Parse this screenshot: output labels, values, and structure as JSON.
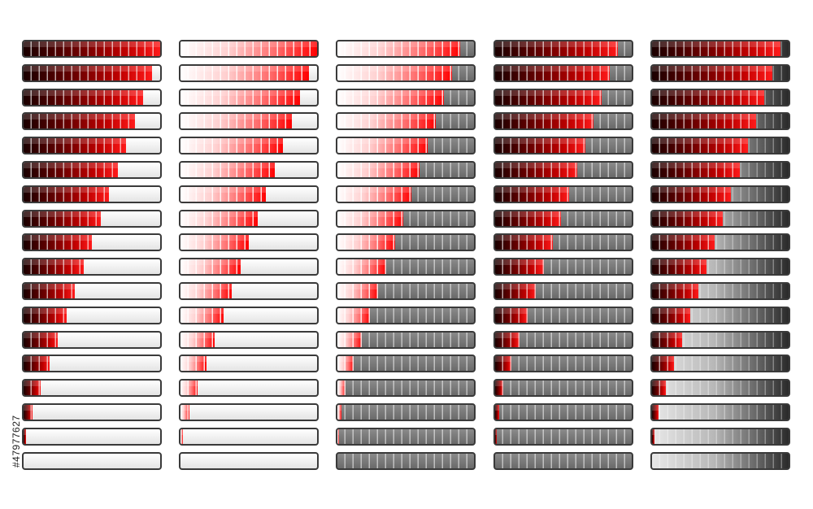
{
  "stock_id": "#47977627",
  "colors": {
    "accent_dark": "#8b0000",
    "accent_red": "#ff0000",
    "track_gray": "#7a7a7a",
    "border": "#3a3a3a"
  },
  "progress_sets": [
    {
      "name": "set-dark-red-on-white",
      "track": "white",
      "fill": "dark",
      "levels": [
        1.0,
        0.9375,
        0.875,
        0.8125,
        0.75,
        0.6875,
        0.625,
        0.5625,
        0.5,
        0.4375,
        0.375,
        0.3125,
        0.25,
        0.1875,
        0.125,
        0.0625,
        0.02,
        0.0
      ]
    },
    {
      "name": "set-light-red-on-white",
      "track": "white",
      "fill": "light",
      "levels": [
        1.0,
        0.9375,
        0.875,
        0.8125,
        0.75,
        0.6875,
        0.625,
        0.5625,
        0.5,
        0.4375,
        0.375,
        0.3125,
        0.25,
        0.1875,
        0.125,
        0.0625,
        0.02,
        0.0
      ]
    },
    {
      "name": "set-light-red-on-gray",
      "track": "gray",
      "fill": "light",
      "levels": [
        0.9,
        0.84,
        0.78,
        0.72,
        0.66,
        0.6,
        0.54,
        0.48,
        0.42,
        0.36,
        0.3,
        0.24,
        0.18,
        0.12,
        0.06,
        0.03,
        0.01,
        0.0
      ]
    },
    {
      "name": "set-dark-red-on-gray",
      "track": "gray",
      "fill": "dark",
      "levels": [
        0.9,
        0.84,
        0.78,
        0.72,
        0.66,
        0.6,
        0.54,
        0.48,
        0.42,
        0.36,
        0.3,
        0.24,
        0.18,
        0.12,
        0.06,
        0.03,
        0.01,
        0.0
      ]
    },
    {
      "name": "set-dark-red-on-gradient",
      "track": "grad",
      "fill": "dark",
      "levels": [
        0.94,
        0.88,
        0.82,
        0.76,
        0.7,
        0.64,
        0.58,
        0.52,
        0.46,
        0.4,
        0.34,
        0.28,
        0.22,
        0.16,
        0.1,
        0.05,
        0.02,
        0.0
      ]
    }
  ]
}
